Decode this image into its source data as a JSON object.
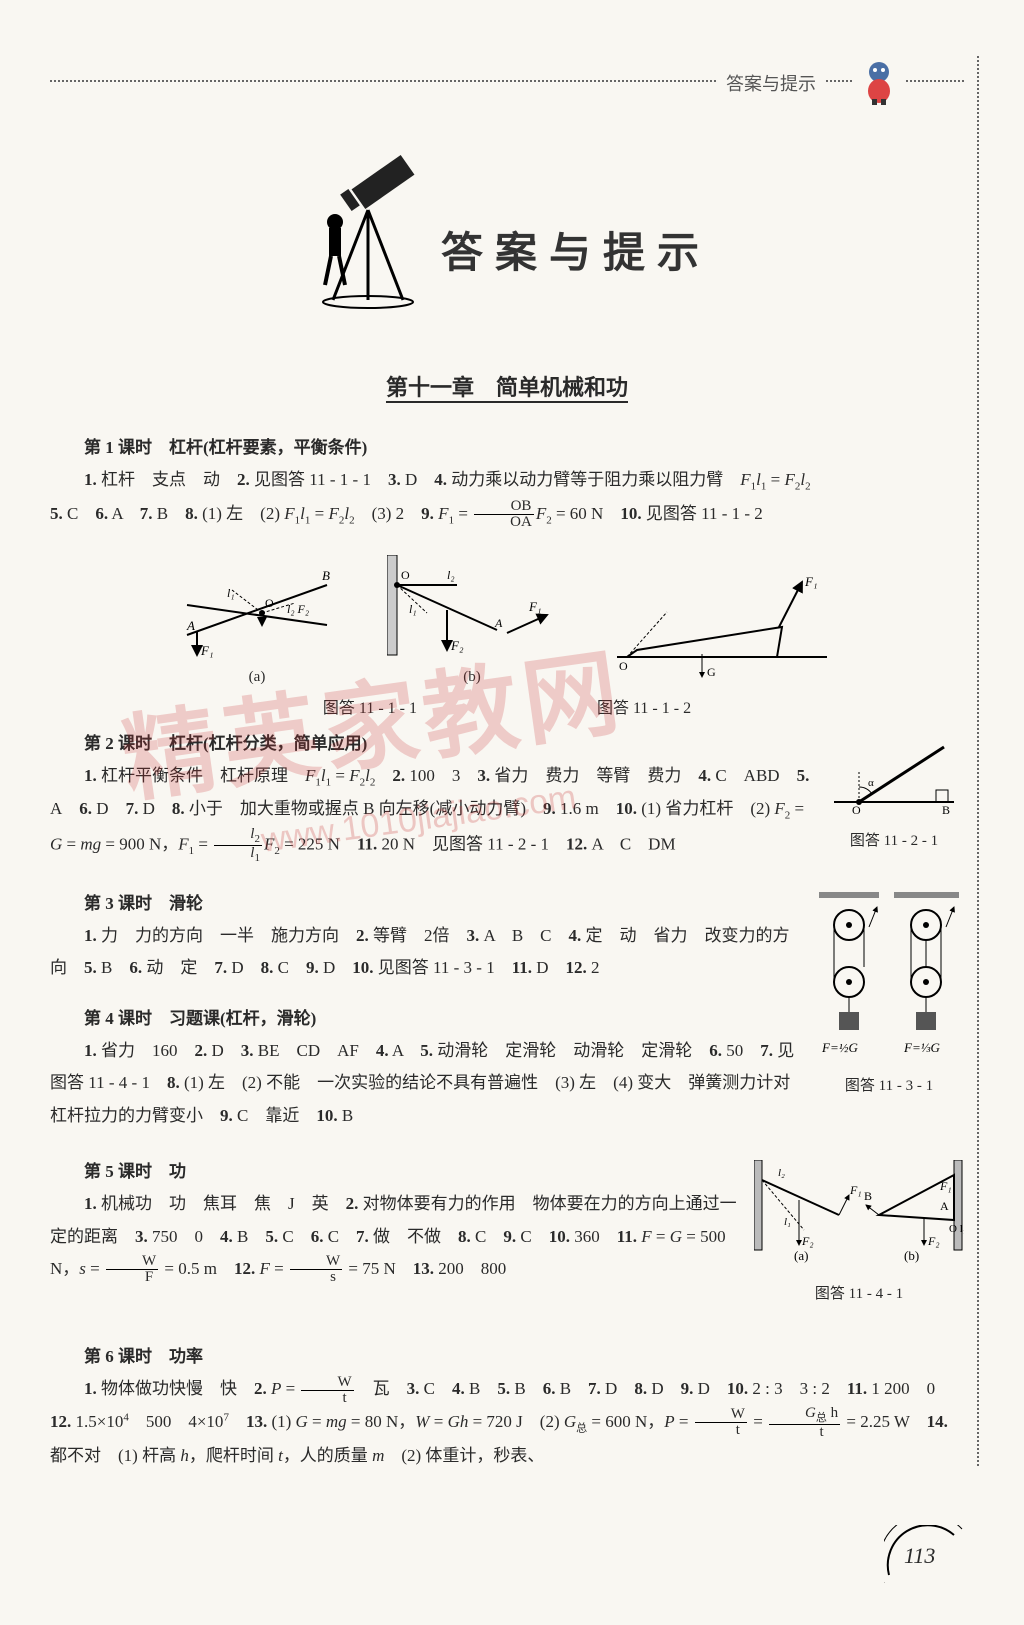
{
  "header": {
    "top_label": "答案与提示"
  },
  "title": {
    "main": "答案与提示"
  },
  "chapter": {
    "title": "第十一章　简单机械和功"
  },
  "watermark": {
    "text": "精英家教网",
    "url": "www.1010jiajiao.com"
  },
  "lessons": [
    {
      "head": "第 1 课时　杠杆(杠杆要素，平衡条件)",
      "body_html": "<b>1.</b> 杠杆　支点　动　<b>2.</b> 见图答 11 - 1 - 1　<b>3.</b> D　<b>4.</b> 动力乘以动力臂等于阻力乘以阻力臂　<i>F</i><span class='sub'>1</span><i>l</i><span class='sub'>1</span> = <i>F</i><span class='sub'>2</span><i>l</i><span class='sub'>2</span><br><b>5.</b> C　<b>6.</b> A　<b>7.</b> B　<b>8.</b> (1) 左　(2) <i>F</i><span class='sub'>1</span><i>l</i><span class='sub'>1</span> = <i>F</i><span class='sub'>2</span><i>l</i><span class='sub'>2</span>　(3) 2　<b>9.</b> <i>F</i><span class='sub'>1</span> = <span class='frac'><span class='num'>OB</span><span class='den'>OA</span></span><i>F</i><span class='sub'>2</span> = 60 N　<b>10.</b> 见图答 11 - 1 - 2"
    },
    {
      "head": "第 2 课时　杠杆(杠杆分类，简单应用)",
      "body_html": "<b>1.</b> 杠杆平衡条件　杠杆原理　<i>F</i><span class='sub'>1</span><i>l</i><span class='sub'>1</span> = <i>F</i><span class='sub'>2</span><i>l</i><span class='sub'>2</span>　<b>2.</b> 100　3　<b>3.</b> 省力　费力　等臂　费力　<b>4.</b> C　ABD　<b>5.</b> A　<b>6.</b> D　<b>7.</b> D　<b>8.</b> 小于　加大重物或握点 B 向左移(减小动力臂)　<b>9.</b> 1.6 m　<b>10.</b> (1) 省力杠杆　(2) <i>F</i><span class='sub'>2</span> = <i>G</i> = <i>mg</i> = 900 N，<i>F</i><span class='sub'>1</span> = <span class='frac'><span class='num'><i>l</i><span class='sub'>2</span></span><span class='den'><i>l</i><span class='sub'>1</span></span></span><i>F</i><span class='sub'>2</span> = 225 N　<b>11.</b> 20 N　见图答 11 - 2 - 1　<b>12.</b> A　C　DM"
    },
    {
      "head": "第 3 课时　滑轮",
      "body_html": "<b>1.</b> 力　力的方向　一半　施力方向　<b>2.</b> 等臂　2倍　<b>3.</b> A　B　C　<b>4.</b> 定　动　省力　改变力的方向　<b>5.</b> B　<b>6.</b> 动　定　<b>7.</b> D　<b>8.</b> C　<b>9.</b> D　<b>10.</b> 见图答 11 - 3 - 1　<b>11.</b> D　<b>12.</b> 2"
    },
    {
      "head": "第 4 课时　习题课(杠杆，滑轮)",
      "body_html": "<b>1.</b> 省力　160　<b>2.</b> D　<b>3.</b> BE　CD　AF　<b>4.</b> A　<b>5.</b> 动滑轮　定滑轮　动滑轮　定滑轮　<b>6.</b> 50　<b>7.</b> 见图答 11 - 4 - 1　<b>8.</b> (1) 左　(2) 不能　一次实验的结论不具有普遍性　(3) 左　(4) 变大　弹簧测力计对杠杆拉力的力臂变小　<b>9.</b> C　靠近　<b>10.</b> B"
    },
    {
      "head": "第 5 课时　功",
      "body_html": "<b>1.</b> 机械功　功　焦耳　焦　J　英　<b>2.</b> 对物体要有力的作用　物体要在力的方向上通过一定的距离　<b>3.</b> 750　0　<b>4.</b> B　<b>5.</b> C　<b>6.</b> C　<b>7.</b> 做　不做　<b>8.</b> C　<b>9.</b> C　<b>10.</b> 360　<b>11.</b> <i>F</i> = <i>G</i> = 500 N，<i>s</i> = <span class='frac'><span class='num'>W</span><span class='den'>F</span></span> = 0.5 m　<b>12.</b> <i>F</i> = <span class='frac'><span class='num'>W</span><span class='den'>s</span></span> = 75 N　<b>13.</b> 200　800"
    },
    {
      "head": "第 6 课时　功率",
      "body_html": "<b>1.</b> 物体做功快慢　快　<b>2.</b> <i>P</i> = <span class='frac'><span class='num'>W</span><span class='den'>t</span></span>　瓦　<b>3.</b> C　<b>4.</b> B　<b>5.</b> B　<b>6.</b> B　<b>7.</b> D　<b>8.</b> D　<b>9.</b> D　<b>10.</b> 2 : 3　3 : 2　<b>11.</b> 1 200　0　<b>12.</b> 1.5×10<span class='sup'>4</span>　500　4×10<span class='sup'>7</span>　<b>13.</b> (1) <i>G</i> = <i>mg</i> = 80 N，<i>W</i> = <i>Gh</i> = 720 J　(2) <i>G</i><span class='sub'>总</span> = 600 N，<i>P</i> = <span class='frac'><span class='num'>W</span><span class='den'>t</span></span> = <span class='frac'><span class='num'><i>G</i><span class='sub'>总</span> h</span><span class='den'>t</span></span> = 2.25 W　<b>14.</b> 都不对　(1) 杆高 <i>h</i>，爬杆时间 <i>t</i>，人的质量 <i>m</i>　(2) 体重计，秒表、"
    }
  ],
  "diagrams": {
    "d11_1_1": {
      "caption_a": "(a)",
      "caption_b": "(b)",
      "label": "图答 11 - 1 - 1"
    },
    "d11_1_2": {
      "label": "图答 11 - 1 - 2"
    },
    "d11_2_1": {
      "label": "图答 11 - 2 - 1"
    },
    "d11_3_1": {
      "label_left": "F = ½G",
      "label_right": "F = ⅓G",
      "label": "图答 11 - 3 - 1"
    },
    "d11_4_1": {
      "caption_a": "(a)",
      "caption_b": "(b)",
      "label": "图答 11 - 4 - 1"
    }
  },
  "page_number": "113",
  "colors": {
    "bg": "#f9f7f2",
    "text": "#2a2a2a",
    "dotted": "#666666",
    "watermark": "rgba(200,50,50,0.22)"
  }
}
